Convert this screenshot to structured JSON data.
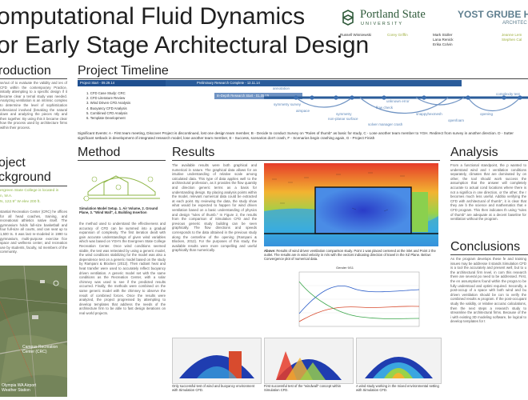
{
  "title": {
    "line1": "omputational Fluid Dynamics",
    "line2": "or Early Stage Architectural Design"
  },
  "logos": {
    "portland_state": "Portland State",
    "university": "UNIVERSITY",
    "ygh_line1": "YOST GRUBE HA",
    "ygh_line2": "ARCHITEC"
  },
  "authors": {
    "col1": [
      "Russell Wisniewski"
    ],
    "col2": [
      "Corey Griffin"
    ],
    "col3": [
      "Mark Stoller",
      "Lana Renick",
      "Erika Colvin"
    ],
    "col4": [
      "Jeanne Lem",
      "Stephen Cal"
    ]
  },
  "sections": {
    "introduction": "roduction",
    "project_background_1": "oject",
    "project_background_2": "ckground",
    "timeline": "Project Timeline",
    "method": "Method",
    "results": "Results",
    "analysis": "Analysis",
    "conclusions": "Conclusions"
  },
  "intro_text": "se/out of to evaluate the validity and ies of CFD within the contemporary Practice, initially attempting to a specific design if it became clear a ternal study was needed. Analyzing ventilation is an intrinsic complex to determine the level of sophistication rofessional involved (breaking the natural down and analyzing the pieces ntly and then together. By using this it became clear how the process used by architecture firms within their process.",
  "background": {
    "location_lead": "ergreen State College is located in",
    "location_city": "n, W.A.",
    "location_coords": "N, 122.9° W elev 200 ft.",
    "text": "stantial Recreation Center (CRC) he offices for all head coaches, training, and recreational athletics native itself. The gymnasium holds full-size basketball and four full-size all courts, and can seat up to 1,500 ts. It was last re-modeled in 1990 to gymnasium, multi-purpose exercise fice space and wellness center, and recreation use by students, faculty, nd members of the community."
  },
  "map_labels": {
    "rec_center": "Campus Recreation Center (CRC)",
    "airport": "Olympia WA Airport Weather Station"
  },
  "timeline": {
    "bar_start": "Project Start - 09.29.14",
    "bar_prelim": "Preliminary Research Complete - 12.11.14",
    "bar_inhealth": "In-Depth Research Start - 01.05.15",
    "steps": [
      "1.    CFD Case Study: CRC",
      "2.    CFD Literature Review",
      "3.    Wind Driven CFD Analysis",
      "4.    Buoyancy CFD Analysis",
      "5.    Combined CFD Analysis",
      "6.    Template Development"
    ],
    "annotations": [
      "annotation",
      "symmetry survey",
      "airspace",
      "unknown error",
      "flow check",
      "symmetry",
      "non-planar surface",
      "snappyhexmesh",
      "solver manager crash",
      "complexity test",
      "opening",
      "openfoam"
    ],
    "events_text": "Significant Events: A - First team meeting, Discover Project is discontinued, lost one design team member, B - Decide to conduct Survey on \"Rules of thumb\" as basic for study, C - Lose another team member to YGH. Redirect from survey in another direction. D - Sutter significant setback in development of integrated research model, lose another team member, E - Success, scenarios don't crash, F - Scenarios begin crashing again, G - Project Finish"
  },
  "method": {
    "model_caption": "Simulation Model Setup. 1. Air Volume, 2. Ground Plane, 3. \"Wind Wall\", 4. Building Insertion",
    "text": "the method used to understand the effectiveness and accuracy of CFD can be summed into a gradual expansion of complexity. The first iteration dealt with gain accurate understandings of given wind variables which was based on YGH's the Evergreen State College Recreation Center. Once wind conditions seemed stable, the test was reiterated by using a generic model, the wind conditions stabilizing for the model was also a dependence test on a generic model based on the study by Rampani & Blocken (2012). Then radiant heat and heat transfer were used to accurately reflect buoyancy driven ventilation. A generic model set with the same conditions as the Recreation Center, with a solar chimney was used to see if the predicted results occurred. Finally, the methods were combined on the same generic model with the chimney to observe the result of combined forces. Once the results were analyzed, the project progressed by attempting to develop templates that address the needs of the architecture firm to be able to fast design iterations on real world projects."
  },
  "results": {
    "text": "The available results were both graphical and numerical in nature. The graphical data allows for an intuitive understanding of relative scale among calculated data. This type of data applies well to the architectural profession, as it provides the flow quantity and direction generic terms as a basis for understanding design. By placing analysis points within the model, relevant numerical data could be extracted at each point. By reviewing the data, the study show what would be expected to happen for wind driven ventilation based on a basic understanding of physics and design \"rules of thumb.\" In Figure 2, the results from the comparison of Simulation CFD and the previous generic study building can be seen graphically. The flow directions and speeds corresponds to the data obtained in the previous study along the centerline of the opening (Rampani & Blocken, 2012). For the purposes of this study, the available results were more compelling and useful graphically than numerically.",
    "contour_caption": "Above: Results of wind driven ventilation comparison study. Point 1 was placed centered at the inlet and Point 2 the outlet. The results are in wind velocity in m/s with the vectors indicating direction of travel in the XZ Plane. Below: Convergence plot of numerical data.",
    "caption_prefix": "Above:",
    "plot_title": "Gender 9/11",
    "captions": [
      "Only successful test of wind and buoyancy environment with Simulation CFD.",
      "First successful test of the \"windwall\" concept within Simulation CFD.",
      "A wind study working in the mixed environmental setting with Simulation CFD."
    ]
  },
  "analysis": {
    "text": "From a functional standpoint, the p wanted to understand wind and t ventilation conditions separately, climates that are dominated by on other, the tool should work success the assumption that the answer will completely accurate to actual cond locations where there is not a significa in one direction, or the other, the r becomes much less useful. Additio verifying the CFD with architectural of thumb\", it is clear that they are b the science and mathematics that e CFD program. This then indicates th using \"rules of thumb\" are adequate at a decent baseline for ventilation without the program."
  },
  "conclusions": {
    "text": "As the program develops these fe and training issues may be addresse it stands Simulation CFD is a tool the accurately and present well, but to u the architectural firm level, in com this research there are several po need to be addressed. First, the en assumptions found within the progra to be fully understood and optimi required. Secondly, a post-occup of a space with both wind and bu driven ventilation should be con to verify the combined results w program. If the post-occupant study the validity, or relative accurac calculations, then the next steps a research study to streamline the architectural firms. Because of the i with existing 3D modeling software, be logical to develop templates for t"
  },
  "colors": {
    "accent_green": "#8db544",
    "timeline_blue": "#1f4f8f",
    "timeline_light": "#5c86b8",
    "logo_green": "#2f5a3a"
  }
}
